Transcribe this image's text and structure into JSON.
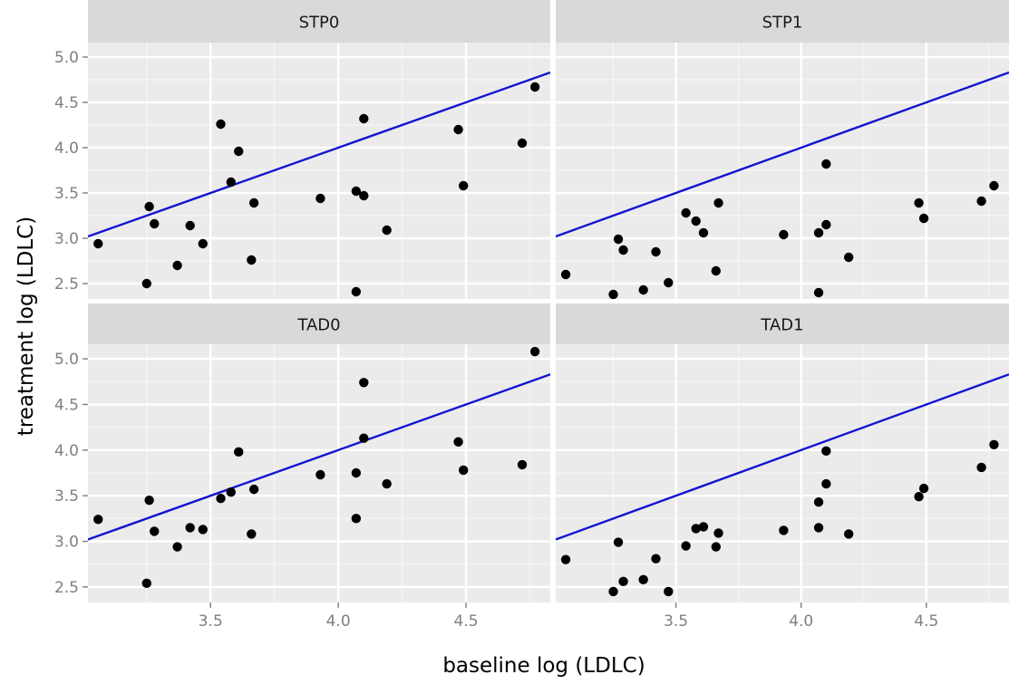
{
  "chart_data": {
    "type": "scatter",
    "layout": "facet_wrap_2x2",
    "xlabel": "baseline log (LDLC)",
    "ylabel": "treatment log (LDLC)",
    "xlim": [
      3.02,
      4.83
    ],
    "ylim": [
      2.33,
      5.16
    ],
    "x_ticks": [
      3.5,
      4.0,
      4.5
    ],
    "x_tick_labels": [
      "3.5",
      "4.0",
      "4.5"
    ],
    "y_ticks": [
      2.5,
      3.0,
      3.5,
      4.0,
      4.5,
      5.0
    ],
    "y_tick_labels": [
      "2.5",
      "3.0",
      "3.5",
      "4.0",
      "4.5",
      "5.0"
    ],
    "grid": true,
    "reference_line": {
      "intercept": 0.0,
      "slope": 1.0,
      "color": "#1414d2"
    },
    "colors": {
      "panel": "#ebebeb",
      "strip": "#d9d9d9",
      "points": "#000000"
    },
    "panels": [
      {
        "label": "STP0",
        "points": [
          [
            3.06,
            2.94
          ],
          [
            3.25,
            2.5
          ],
          [
            3.26,
            3.35
          ],
          [
            3.28,
            3.16
          ],
          [
            3.37,
            2.7
          ],
          [
            3.42,
            3.14
          ],
          [
            3.47,
            2.94
          ],
          [
            3.54,
            4.26
          ],
          [
            3.58,
            3.62
          ],
          [
            3.61,
            3.96
          ],
          [
            3.66,
            2.76
          ],
          [
            3.67,
            3.39
          ],
          [
            3.93,
            3.44
          ],
          [
            4.07,
            3.52
          ],
          [
            4.07,
            2.41
          ],
          [
            4.1,
            4.32
          ],
          [
            4.1,
            3.47
          ],
          [
            4.19,
            3.09
          ],
          [
            4.47,
            4.2
          ],
          [
            4.49,
            3.58
          ],
          [
            4.72,
            4.05
          ],
          [
            4.77,
            4.67
          ]
        ]
      },
      {
        "label": "STP1",
        "points": [
          [
            3.06,
            2.6
          ],
          [
            3.25,
            2.38
          ],
          [
            3.27,
            2.99
          ],
          [
            3.29,
            2.87
          ],
          [
            3.37,
            2.43
          ],
          [
            3.42,
            2.85
          ],
          [
            3.47,
            2.51
          ],
          [
            3.54,
            3.28
          ],
          [
            3.58,
            3.19
          ],
          [
            3.61,
            3.06
          ],
          [
            3.66,
            2.64
          ],
          [
            3.67,
            3.39
          ],
          [
            3.93,
            3.04
          ],
          [
            4.07,
            3.06
          ],
          [
            4.07,
            2.4
          ],
          [
            4.1,
            3.82
          ],
          [
            4.1,
            3.15
          ],
          [
            4.19,
            2.79
          ],
          [
            4.47,
            3.39
          ],
          [
            4.49,
            3.22
          ],
          [
            4.72,
            3.41
          ],
          [
            4.77,
            3.58
          ]
        ]
      },
      {
        "label": "TAD0",
        "points": [
          [
            3.06,
            3.24
          ],
          [
            3.25,
            2.54
          ],
          [
            3.26,
            3.45
          ],
          [
            3.28,
            3.11
          ],
          [
            3.37,
            2.94
          ],
          [
            3.42,
            3.15
          ],
          [
            3.47,
            3.13
          ],
          [
            3.54,
            3.47
          ],
          [
            3.58,
            3.54
          ],
          [
            3.61,
            3.98
          ],
          [
            3.66,
            3.08
          ],
          [
            3.67,
            3.57
          ],
          [
            3.93,
            3.73
          ],
          [
            4.07,
            3.75
          ],
          [
            4.07,
            3.25
          ],
          [
            4.1,
            4.74
          ],
          [
            4.1,
            4.13
          ],
          [
            4.19,
            3.63
          ],
          [
            4.47,
            4.09
          ],
          [
            4.49,
            3.78
          ],
          [
            4.72,
            3.84
          ],
          [
            4.77,
            5.08
          ]
        ]
      },
      {
        "label": "TAD1",
        "points": [
          [
            3.06,
            2.8
          ],
          [
            3.25,
            2.45
          ],
          [
            3.27,
            2.99
          ],
          [
            3.29,
            2.56
          ],
          [
            3.37,
            2.58
          ],
          [
            3.42,
            2.81
          ],
          [
            3.47,
            2.45
          ],
          [
            3.54,
            2.95
          ],
          [
            3.58,
            3.14
          ],
          [
            3.61,
            3.16
          ],
          [
            3.66,
            2.94
          ],
          [
            3.67,
            3.09
          ],
          [
            3.93,
            3.12
          ],
          [
            4.07,
            3.43
          ],
          [
            4.07,
            3.15
          ],
          [
            4.1,
            3.99
          ],
          [
            4.1,
            3.63
          ],
          [
            4.19,
            3.08
          ],
          [
            4.47,
            3.49
          ],
          [
            4.49,
            3.58
          ],
          [
            4.72,
            3.81
          ],
          [
            4.77,
            4.06
          ]
        ]
      }
    ]
  }
}
